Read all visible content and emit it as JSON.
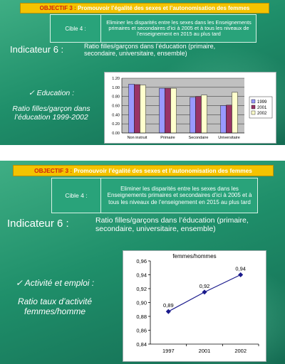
{
  "slide1": {
    "banner": {
      "prefix": "OBJECTIF 3 :",
      "text": " Promouvoir l’égalité des sexes et l’autonomisation des femmes"
    },
    "cible": {
      "label": "Cible 4 :",
      "text": "Eliminer les disparités entre les sexes dans les Enseignements primaires et secondaires d’ici à 2005 et à tous les niveaux de l’enseignement en 2015 au plus tard"
    },
    "indicator_title": "Indicateur 6 :",
    "indicator_desc": "Ratio filles/garçons dans l’éducation (primaire, secondaire, universitaire, ensemble)",
    "side_heading": "✓ Education :",
    "side_text": "Ratio filles/garçon dans l’éducation 1999-2002"
  },
  "slide2": {
    "banner": {
      "prefix": "OBJECTIF 3 :",
      "text": " Promouvoir l’égalité des sexes et l’autonomisation des femmes"
    },
    "cible": {
      "label": "Cible 4 :",
      "text": "Eliminer les disparités entre les sexes dans les Enseignements primaires et secondaires d’ici à 2005 et à tous les niveaux de l’enseignement en 2015 au plus tard"
    },
    "indicator_title": "Indicateur 6 :",
    "indicator_desc": "Ratio filles/garçons dans l’éducation (primaire, secondaire, universitaire, ensemble)",
    "side_heading": "✓ Activité et emploi :",
    "side_text": "Ratio taux d’activité femmes/homme"
  },
  "colors": {
    "banner_bg": "#f4c300",
    "banner_prefix": "#d02010",
    "slide_green": "#1f8f6a",
    "series_1999": "#9999ff",
    "series_2001": "#993366",
    "series_2002": "#ffffcc",
    "line": "#1a1a8c"
  },
  "chart_data": [
    {
      "type": "bar",
      "title": "",
      "categories": [
        "Non instruit",
        "Primaire",
        "Secondaire",
        "Universitaire"
      ],
      "series": [
        {
          "name": "1999",
          "values": [
            1.07,
            0.98,
            0.78,
            0.6
          ]
        },
        {
          "name": "2001",
          "values": [
            1.06,
            0.98,
            0.8,
            0.61
          ]
        },
        {
          "name": "2002",
          "values": [
            1.05,
            0.98,
            0.83,
            0.89
          ]
        }
      ],
      "ylim": [
        0,
        1.2
      ],
      "yticks": [
        "0.00",
        "0.20",
        "0.40",
        "0.60",
        "0.80",
        "1.00",
        "1.20"
      ],
      "legend": "right",
      "grid": true
    },
    {
      "type": "line",
      "title": "femmes/hommes",
      "categories": [
        "1997",
        "2001",
        "2002"
      ],
      "series": [
        {
          "name": "",
          "values": [
            0.887,
            0.915,
            0.94
          ],
          "labels": [
            "0,89",
            "0,92",
            "0,94"
          ]
        }
      ],
      "ylim": [
        0.84,
        0.96
      ],
      "yticks": [
        "0,84",
        "0,86",
        "0,88",
        "0,90",
        "0,92",
        "0,94",
        "0,96"
      ],
      "legend": "none",
      "grid": false
    }
  ]
}
